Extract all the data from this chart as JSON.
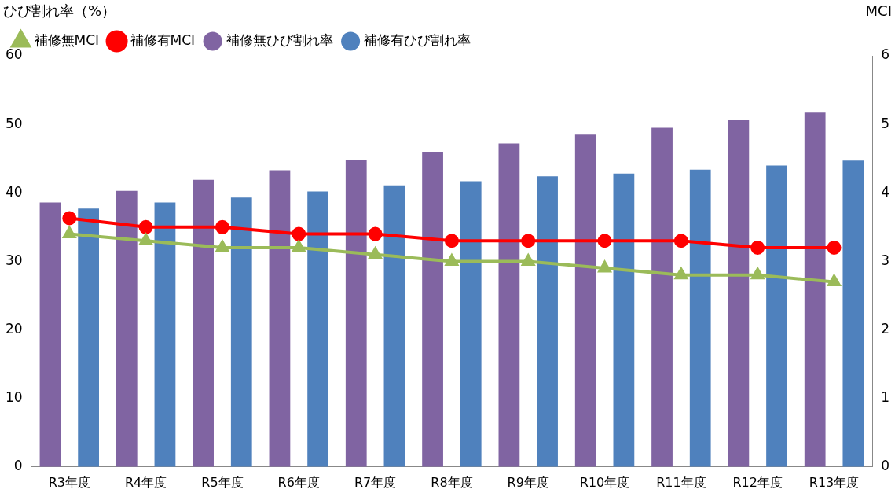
{
  "chart_data": {
    "type": "bar",
    "ylabel": "ひび割れ率（%）",
    "y2label": "MCI",
    "categories": [
      "R3年度",
      "R4年度",
      "R5年度",
      "R6年度",
      "R7年度",
      "R8年度",
      "R9年度",
      "R10年度",
      "R11年度",
      "R12年度",
      "R13年度"
    ],
    "series": [
      {
        "name": "補修無ひび割れ率",
        "color": "#8064a2",
        "values": [
          38.6,
          40.3,
          41.9,
          43.3,
          44.8,
          46.0,
          47.2,
          48.5,
          49.5,
          50.7,
          51.7
        ]
      },
      {
        "name": "補修有ひび割れ率",
        "color": "#4f81bd",
        "values": [
          37.7,
          38.6,
          39.3,
          40.2,
          41.1,
          41.7,
          42.4,
          42.8,
          43.4,
          44.0,
          44.7
        ]
      },
      {
        "name": "補修無MCI",
        "type": "line",
        "axis": "y2",
        "marker": "triangle",
        "color": "#9bbb59",
        "values": [
          3.4,
          3.3,
          3.2,
          3.2,
          3.1,
          3.0,
          3.0,
          2.9,
          2.8,
          2.8,
          2.7
        ]
      },
      {
        "name": "補修有MCI",
        "type": "line",
        "axis": "y2",
        "marker": "circle",
        "color": "#ff0000",
        "values": [
          3.63,
          3.5,
          3.5,
          3.4,
          3.4,
          3.3,
          3.3,
          3.3,
          3.3,
          3.2,
          3.2
        ]
      }
    ],
    "ylim": [
      0,
      60
    ],
    "yticks": [
      0,
      10,
      20,
      30,
      40,
      50,
      60
    ],
    "y2lim": [
      0,
      6
    ],
    "y2ticks": [
      0,
      1,
      2,
      3,
      4,
      5,
      6
    ],
    "grid": false,
    "legend": "top left"
  }
}
